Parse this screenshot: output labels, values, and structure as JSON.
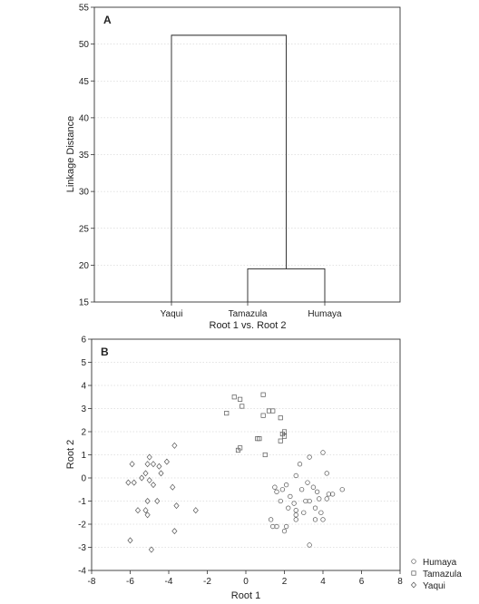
{
  "chart_data": [
    {
      "panel": "A",
      "type": "dendrogram",
      "xlabel": "Root 1 vs. Root 2",
      "ylabel": "Linkage Distance",
      "ylim": [
        15,
        55
      ],
      "yticks": [
        15,
        20,
        25,
        30,
        35,
        40,
        45,
        50,
        55
      ],
      "leaves": [
        "Yaqui",
        "Tamazula",
        "Humaya"
      ],
      "merges": [
        {
          "clusters": [
            "Tamazula",
            "Humaya"
          ],
          "distance": 19.5
        },
        {
          "clusters": [
            "Yaqui",
            "Tamazula+Humaya"
          ],
          "distance": 51.2
        }
      ],
      "grid": true
    },
    {
      "panel": "B",
      "type": "scatter",
      "xlabel": "Root 1",
      "ylabel": "Root 2",
      "xlim": [
        -8,
        8
      ],
      "ylim": [
        -4,
        6
      ],
      "xticks": [
        -8,
        -6,
        -4,
        -2,
        0,
        2,
        4,
        6,
        8
      ],
      "yticks": [
        -4,
        -3,
        -2,
        -1,
        0,
        1,
        2,
        3,
        4,
        5,
        6
      ],
      "grid": true,
      "legend_position": "bottom-right-outside",
      "series": [
        {
          "name": "Humaya",
          "marker": "circle",
          "points": [
            [
              1.5,
              -0.4
            ],
            [
              1.6,
              -0.6
            ],
            [
              1.9,
              -0.5
            ],
            [
              1.8,
              -1.0
            ],
            [
              2.1,
              -0.3
            ],
            [
              2.3,
              -0.8
            ],
            [
              2.5,
              -1.1
            ],
            [
              2.6,
              -1.6
            ],
            [
              2.2,
              -1.3
            ],
            [
              2.9,
              -0.5
            ],
            [
              3.1,
              -1.0
            ],
            [
              3.3,
              -1.0
            ],
            [
              3.2,
              -0.2
            ],
            [
              3.5,
              -0.4
            ],
            [
              3.7,
              -0.6
            ],
            [
              3.8,
              -0.9
            ],
            [
              3.6,
              -1.3
            ],
            [
              3.9,
              -1.5
            ],
            [
              4.3,
              -0.7
            ],
            [
              4.2,
              -0.9
            ],
            [
              4.5,
              -0.7
            ],
            [
              5.0,
              -0.5
            ],
            [
              4.2,
              0.2
            ],
            [
              2.8,
              0.6
            ],
            [
              3.3,
              0.9
            ],
            [
              4.0,
              1.1
            ],
            [
              2.6,
              0.1
            ],
            [
              3.0,
              -1.5
            ],
            [
              2.6,
              -1.8
            ],
            [
              2.1,
              -2.1
            ],
            [
              1.3,
              -1.8
            ],
            [
              1.4,
              -2.1
            ],
            [
              1.6,
              -2.1
            ],
            [
              3.6,
              -1.8
            ],
            [
              4.0,
              -1.8
            ],
            [
              2.0,
              -2.3
            ],
            [
              3.3,
              -2.9
            ],
            [
              2.6,
              -1.4
            ]
          ]
        },
        {
          "name": "Tamazula",
          "marker": "square",
          "points": [
            [
              -0.6,
              3.5
            ],
            [
              -0.3,
              3.4
            ],
            [
              -0.2,
              3.1
            ],
            [
              0.9,
              3.6
            ],
            [
              1.2,
              2.9
            ],
            [
              1.4,
              2.9
            ],
            [
              -1.0,
              2.8
            ],
            [
              0.9,
              2.7
            ],
            [
              1.8,
              2.6
            ],
            [
              0.6,
              1.7
            ],
            [
              0.7,
              1.7
            ],
            [
              1.8,
              1.6
            ],
            [
              1.9,
              1.9
            ],
            [
              2.0,
              2.0
            ],
            [
              2.0,
              1.8
            ],
            [
              -0.4,
              1.2
            ],
            [
              -0.3,
              1.3
            ],
            [
              1.0,
              1.0
            ]
          ]
        },
        {
          "name": "Yaqui",
          "marker": "diamond",
          "points": [
            [
              -3.7,
              1.4
            ],
            [
              -4.1,
              0.7
            ],
            [
              -5.0,
              0.9
            ],
            [
              -4.8,
              0.6
            ],
            [
              -4.5,
              0.5
            ],
            [
              -5.1,
              0.6
            ],
            [
              -5.9,
              0.6
            ],
            [
              -4.4,
              0.2
            ],
            [
              -5.2,
              0.2
            ],
            [
              -5.4,
              0.0
            ],
            [
              -6.1,
              -0.2
            ],
            [
              -5.8,
              -0.2
            ],
            [
              -5.0,
              -0.1
            ],
            [
              -4.8,
              -0.3
            ],
            [
              -3.8,
              -0.4
            ],
            [
              -4.6,
              -1.0
            ],
            [
              -5.1,
              -1.0
            ],
            [
              -3.6,
              -1.2
            ],
            [
              -5.6,
              -1.4
            ],
            [
              -5.2,
              -1.4
            ],
            [
              -5.1,
              -1.6
            ],
            [
              -2.6,
              -1.4
            ],
            [
              -3.7,
              -2.3
            ],
            [
              -6.0,
              -2.7
            ],
            [
              -4.9,
              -3.1
            ]
          ]
        }
      ]
    }
  ]
}
